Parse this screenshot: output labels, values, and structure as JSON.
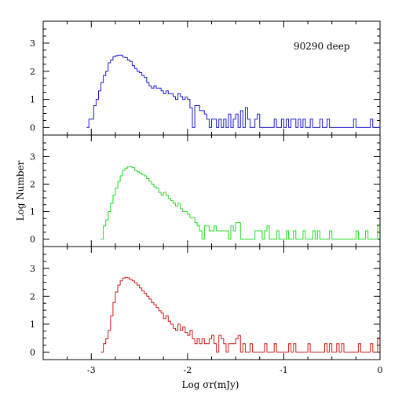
{
  "chart_data": {
    "type": "histogram",
    "xlabel": "Log σr(mJy)",
    "ylabel": "Log Number",
    "annotation": "90290 deep",
    "xlim": [
      -3.5,
      0
    ],
    "ylim": [
      -0.1,
      3.5
    ],
    "x_ticks": [
      -3,
      -2,
      -1,
      0
    ],
    "y_ticks": [
      0,
      1,
      2,
      3
    ],
    "bin_width": 0.025,
    "panels": [
      {
        "name": "top",
        "color": "#1a1acc",
        "x": [
          -3.05,
          -3.025,
          -3.0,
          -2.975,
          -2.95,
          -2.925,
          -2.9,
          -2.875,
          -2.85,
          -2.825,
          -2.8,
          -2.775,
          -2.75,
          -2.725,
          -2.7,
          -2.675,
          -2.65,
          -2.625,
          -2.6,
          -2.575,
          -2.55,
          -2.525,
          -2.5,
          -2.475,
          -2.45,
          -2.425,
          -2.4,
          -2.375,
          -2.35,
          -2.325,
          -2.3,
          -2.275,
          -2.25,
          -2.225,
          -2.2,
          -2.175,
          -2.15,
          -2.125,
          -2.1,
          -2.075,
          -2.05,
          -2.025,
          -2.0,
          -1.975,
          -1.95,
          -1.925,
          -1.9,
          -1.875,
          -1.85,
          -1.825,
          -1.8,
          -1.775,
          -1.75,
          -1.725,
          -1.7,
          -1.675,
          -1.65,
          -1.625,
          -1.6,
          -1.575,
          -1.55,
          -1.525,
          -1.5,
          -1.475,
          -1.45,
          -1.425,
          -1.4,
          -1.375,
          -1.35,
          -1.325,
          -1.3,
          -1.275,
          -1.25,
          -1.225,
          -1.2,
          -1.175,
          -1.15,
          -1.125,
          -1.1,
          -1.075,
          -1.05,
          -1.025,
          -1.0,
          -0.975,
          -0.95,
          -0.925,
          -0.9,
          -0.875,
          -0.85,
          -0.825,
          -0.8,
          -0.775,
          -0.75,
          -0.725,
          -0.7,
          -0.675,
          -0.65,
          -0.625,
          -0.6,
          -0.575,
          -0.55,
          -0.525,
          -0.5,
          -0.475,
          -0.45,
          -0.425,
          -0.4,
          -0.375,
          -0.35,
          -0.325,
          -0.3,
          -0.275,
          -0.25,
          -0.225,
          -0.2,
          -0.175,
          -0.15,
          -0.125,
          -0.1,
          -0.075,
          -0.05,
          -0.025
        ],
        "y": [
          0.0,
          0.3,
          0.3,
          0.78,
          1.0,
          1.3,
          1.6,
          1.85,
          2.0,
          2.3,
          2.4,
          2.52,
          2.55,
          2.57,
          2.57,
          2.5,
          2.48,
          2.4,
          2.35,
          2.2,
          2.1,
          2.0,
          1.95,
          1.85,
          1.78,
          1.6,
          1.48,
          1.4,
          1.48,
          1.4,
          1.4,
          1.3,
          1.2,
          1.3,
          1.2,
          1.2,
          1.1,
          1.0,
          1.2,
          1.1,
          1.0,
          1.08,
          1.0,
          0.7,
          0.0,
          0.78,
          0.78,
          0.6,
          0.6,
          0.48,
          0.3,
          0.0,
          0.3,
          0.3,
          0.0,
          0.3,
          0.0,
          0.3,
          0.0,
          0.48,
          0.0,
          0.3,
          0.48,
          0.0,
          0.6,
          0.0,
          0.7,
          0.3,
          0.0,
          0.0,
          0.3,
          0.48,
          0.0,
          0.0,
          0.0,
          0.0,
          0.0,
          0.0,
          0.3,
          0.0,
          0.0,
          0.3,
          0.0,
          0.3,
          0.0,
          0.3,
          0.3,
          0.0,
          0.3,
          0.0,
          0.3,
          0.0,
          0.0,
          0.3,
          0.0,
          0.0,
          0.0,
          0.3,
          0.0,
          0.0,
          0.3,
          0.0,
          0.0,
          0.0,
          0.0,
          0.0,
          0.0,
          0.0,
          0.0,
          0.0,
          0.0,
          0.3,
          0.0,
          0.0,
          0.0,
          0.0,
          0.0,
          0.0,
          0.3,
          0.0,
          0.0,
          0.0
        ]
      },
      {
        "name": "middle",
        "color": "#22dd22",
        "x": [
          -2.9,
          -2.875,
          -2.85,
          -2.825,
          -2.8,
          -2.775,
          -2.75,
          -2.725,
          -2.7,
          -2.675,
          -2.65,
          -2.625,
          -2.6,
          -2.575,
          -2.55,
          -2.525,
          -2.5,
          -2.475,
          -2.45,
          -2.425,
          -2.4,
          -2.375,
          -2.35,
          -2.325,
          -2.3,
          -2.275,
          -2.25,
          -2.225,
          -2.2,
          -2.175,
          -2.15,
          -2.125,
          -2.1,
          -2.075,
          -2.05,
          -2.025,
          -2.0,
          -1.975,
          -1.95,
          -1.925,
          -1.9,
          -1.875,
          -1.85,
          -1.825,
          -1.8,
          -1.775,
          -1.75,
          -1.725,
          -1.7,
          -1.675,
          -1.65,
          -1.625,
          -1.6,
          -1.575,
          -1.55,
          -1.525,
          -1.5,
          -1.475,
          -1.45,
          -1.425,
          -1.4,
          -1.375,
          -1.35,
          -1.325,
          -1.3,
          -1.275,
          -1.25,
          -1.225,
          -1.2,
          -1.175,
          -1.15,
          -1.125,
          -1.1,
          -1.075,
          -1.05,
          -1.025,
          -1.0,
          -0.975,
          -0.95,
          -0.925,
          -0.9,
          -0.875,
          -0.85,
          -0.825,
          -0.8,
          -0.775,
          -0.75,
          -0.725,
          -0.7,
          -0.675,
          -0.65,
          -0.625,
          -0.6,
          -0.575,
          -0.55,
          -0.525,
          -0.5,
          -0.475,
          -0.45,
          -0.425,
          -0.4,
          -0.375,
          -0.35,
          -0.325,
          -0.3,
          -0.275,
          -0.25,
          -0.225,
          -0.2,
          -0.175,
          -0.15,
          -0.125,
          -0.1,
          -0.075,
          -0.05,
          -0.025
        ],
        "y": [
          0.0,
          0.48,
          0.7,
          1.0,
          1.3,
          1.6,
          1.85,
          2.1,
          2.3,
          2.5,
          2.58,
          2.63,
          2.63,
          2.6,
          2.5,
          2.45,
          2.4,
          2.35,
          2.3,
          2.2,
          2.1,
          2.0,
          1.9,
          1.85,
          1.7,
          1.6,
          1.7,
          1.6,
          1.48,
          1.4,
          1.3,
          1.2,
          1.3,
          1.1,
          1.0,
          1.0,
          0.9,
          0.78,
          0.78,
          0.6,
          0.48,
          0.3,
          0.0,
          0.48,
          0.48,
          0.3,
          0.3,
          0.48,
          0.3,
          0.3,
          0.3,
          0.3,
          0.3,
          0.0,
          0.48,
          0.3,
          0.6,
          0.6,
          0.0,
          0.0,
          0.0,
          0.0,
          0.0,
          0.0,
          0.3,
          0.3,
          0.3,
          0.0,
          0.3,
          0.48,
          0.0,
          0.0,
          0.0,
          0.3,
          0.0,
          0.0,
          0.0,
          0.3,
          0.0,
          0.0,
          0.3,
          0.0,
          0.0,
          0.0,
          0.3,
          0.0,
          0.0,
          0.0,
          0.3,
          0.0,
          0.3,
          0.0,
          0.0,
          0.0,
          0.0,
          0.3,
          0.0,
          0.0,
          0.0,
          0.0,
          0.0,
          0.0,
          0.0,
          0.0,
          0.0,
          0.0,
          0.3,
          0.0,
          0.0,
          0.0,
          0.3,
          0.0,
          0.0,
          0.0,
          0.0,
          0.48
        ]
      },
      {
        "name": "bottom",
        "color": "#cc1a1a",
        "x": [
          -2.9,
          -2.875,
          -2.85,
          -2.825,
          -2.8,
          -2.775,
          -2.75,
          -2.725,
          -2.7,
          -2.675,
          -2.65,
          -2.625,
          -2.6,
          -2.575,
          -2.55,
          -2.525,
          -2.5,
          -2.475,
          -2.45,
          -2.425,
          -2.4,
          -2.375,
          -2.35,
          -2.325,
          -2.3,
          -2.275,
          -2.25,
          -2.225,
          -2.2,
          -2.175,
          -2.15,
          -2.125,
          -2.1,
          -2.075,
          -2.05,
          -2.025,
          -2.0,
          -1.975,
          -1.95,
          -1.925,
          -1.9,
          -1.875,
          -1.85,
          -1.825,
          -1.8,
          -1.775,
          -1.75,
          -1.725,
          -1.7,
          -1.675,
          -1.65,
          -1.625,
          -1.6,
          -1.575,
          -1.55,
          -1.525,
          -1.5,
          -1.475,
          -1.45,
          -1.425,
          -1.4,
          -1.375,
          -1.35,
          -1.325,
          -1.3,
          -1.275,
          -1.25,
          -1.225,
          -1.2,
          -1.175,
          -1.15,
          -1.125,
          -1.1,
          -1.075,
          -1.05,
          -1.025,
          -1.0,
          -0.975,
          -0.95,
          -0.925,
          -0.9,
          -0.875,
          -0.85,
          -0.825,
          -0.8,
          -0.775,
          -0.75,
          -0.725,
          -0.7,
          -0.675,
          -0.65,
          -0.625,
          -0.6,
          -0.575,
          -0.55,
          -0.525,
          -0.5,
          -0.475,
          -0.45,
          -0.425,
          -0.4,
          -0.375,
          -0.35,
          -0.325,
          -0.3,
          -0.275,
          -0.25,
          -0.225,
          -0.2,
          -0.175,
          -0.15,
          -0.125,
          -0.1,
          -0.075,
          -0.05,
          -0.025
        ],
        "y": [
          0.0,
          0.3,
          0.48,
          0.78,
          1.3,
          1.78,
          2.15,
          2.4,
          2.55,
          2.65,
          2.68,
          2.66,
          2.6,
          2.55,
          2.48,
          2.4,
          2.3,
          2.2,
          2.1,
          2.0,
          1.9,
          1.78,
          1.7,
          1.6,
          1.48,
          1.4,
          1.2,
          1.3,
          1.1,
          1.0,
          0.85,
          0.78,
          1.0,
          0.78,
          0.9,
          0.7,
          0.6,
          0.78,
          0.48,
          0.3,
          0.48,
          0.3,
          0.48,
          0.3,
          0.3,
          0.48,
          0.6,
          0.3,
          0.0,
          0.6,
          0.48,
          0.3,
          0.0,
          0.3,
          0.3,
          0.3,
          0.48,
          0.6,
          0.0,
          0.3,
          0.0,
          0.0,
          0.3,
          0.0,
          0.0,
          0.0,
          0.0,
          0.0,
          0.3,
          0.0,
          0.0,
          0.0,
          0.3,
          0.0,
          0.0,
          0.0,
          0.0,
          0.0,
          0.3,
          0.0,
          0.3,
          0.0,
          0.0,
          0.0,
          0.0,
          0.0,
          0.3,
          0.0,
          0.0,
          0.0,
          0.0,
          0.0,
          0.0,
          0.3,
          0.0,
          0.3,
          0.0,
          0.0,
          0.3,
          0.0,
          0.3,
          0.0,
          0.0,
          0.0,
          0.0,
          0.0,
          0.0,
          0.3,
          0.0,
          0.0,
          0.0,
          0.0,
          0.3,
          0.0,
          0.0,
          0.48
        ]
      }
    ]
  }
}
